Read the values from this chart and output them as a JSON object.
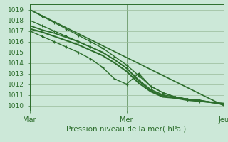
{
  "title": "",
  "xlabel": "Pression niveau de la mer( hPa )",
  "ylabel": "",
  "bg_color": "#cce8d8",
  "plot_bg_color": "#cce8d8",
  "line_color": "#2d6e2d",
  "grid_color": "#99bb99",
  "ylim": [
    1009.5,
    1019.5
  ],
  "xlim": [
    0,
    48
  ],
  "yticks": [
    1010,
    1011,
    1012,
    1013,
    1014,
    1015,
    1016,
    1017,
    1018,
    1019
  ],
  "xtick_positions": [
    0,
    24,
    48
  ],
  "xtick_labels": [
    "Mar",
    "Mer",
    "Jeu"
  ],
  "lines": [
    {
      "x": [
        0,
        3,
        6,
        9,
        12,
        15,
        18,
        21,
        24,
        27,
        30,
        33,
        36,
        39,
        42,
        45,
        48
      ],
      "y": [
        1019.0,
        1018.4,
        1017.8,
        1017.2,
        1016.6,
        1016.0,
        1015.4,
        1014.6,
        1013.8,
        1012.8,
        1011.8,
        1011.2,
        1010.8,
        1010.6,
        1010.5,
        1010.3,
        1010.2
      ],
      "marker": "+",
      "markersize": 3.5,
      "linewidth": 1.0
    },
    {
      "x": [
        0,
        3,
        6,
        9,
        12,
        15,
        18,
        21,
        24,
        27,
        30,
        33,
        36,
        39,
        42,
        45,
        48
      ],
      "y": [
        1018.0,
        1017.5,
        1017.0,
        1016.5,
        1016.0,
        1015.5,
        1015.0,
        1014.3,
        1013.5,
        1012.4,
        1011.5,
        1011.0,
        1010.8,
        1010.6,
        1010.4,
        1010.3,
        1010.2
      ],
      "marker": "+",
      "markersize": 3.5,
      "linewidth": 1.0
    },
    {
      "x": [
        0,
        3,
        6,
        9,
        12,
        15,
        18,
        21,
        24,
        27,
        30,
        33,
        36,
        39,
        42,
        45,
        48
      ],
      "y": [
        1017.5,
        1017.1,
        1016.8,
        1016.4,
        1016.0,
        1015.5,
        1015.0,
        1014.3,
        1013.5,
        1012.3,
        1011.4,
        1010.9,
        1010.7,
        1010.6,
        1010.4,
        1010.3,
        1010.1
      ],
      "marker": null,
      "markersize": 0,
      "linewidth": 1.3
    },
    {
      "x": [
        0,
        3,
        6,
        9,
        12,
        15,
        18,
        21,
        24,
        27,
        30,
        33,
        36,
        39,
        42,
        45,
        48
      ],
      "y": [
        1017.2,
        1016.9,
        1016.5,
        1016.1,
        1015.7,
        1015.2,
        1014.7,
        1014.0,
        1013.2,
        1012.1,
        1011.3,
        1010.8,
        1010.7,
        1010.5,
        1010.4,
        1010.3,
        1010.1
      ],
      "marker": null,
      "markersize": 0,
      "linewidth": 1.5
    },
    {
      "x": [
        0,
        3,
        6,
        9,
        12,
        15,
        18,
        21,
        24,
        27,
        30,
        33,
        36,
        39,
        42,
        45,
        48
      ],
      "y": [
        1017.0,
        1016.5,
        1016.0,
        1015.5,
        1015.0,
        1014.4,
        1013.6,
        1012.5,
        1012.0,
        1013.0,
        1011.8,
        1011.2,
        1010.8,
        1010.6,
        1010.5,
        1010.3,
        1010.1
      ],
      "marker": "+",
      "markersize": 3.5,
      "linewidth": 1.0
    },
    {
      "x": [
        0,
        48
      ],
      "y": [
        1019.0,
        1010.0
      ],
      "marker": null,
      "markersize": 0,
      "linewidth": 1.2
    }
  ]
}
